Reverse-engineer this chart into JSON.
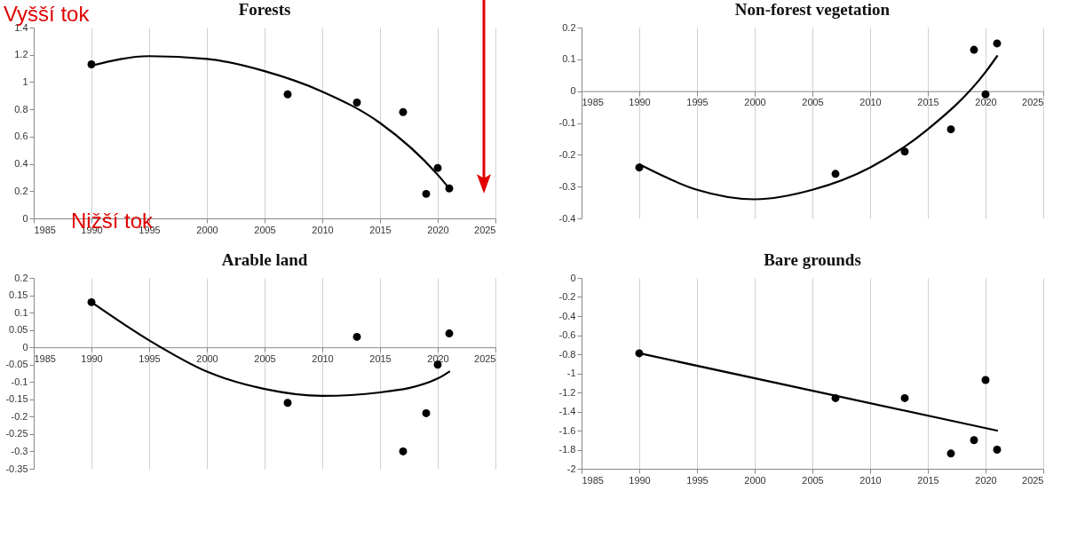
{
  "chart_data": [
    {
      "type": "scatter",
      "title": "Forests",
      "x": [
        1990,
        2007,
        2013,
        2017,
        2019,
        2020,
        2021
      ],
      "xlim": [
        1985,
        2025
      ],
      "xticks": [
        1985,
        1990,
        1995,
        2000,
        2005,
        2010,
        2015,
        2020,
        2025
      ],
      "ylim": [
        0,
        1.4
      ],
      "yticks": [
        0,
        0.2,
        0.4,
        0.6,
        0.8,
        1,
        1.2,
        1.4
      ],
      "grid": "x",
      "annotations": [
        "Vyšší tok",
        "Nižší tok"
      ],
      "series": [
        {
          "marker": "circle",
          "color": "#000000",
          "values": [
            1.13,
            0.91,
            0.85,
            0.78,
            0.18,
            0.37,
            0.22
          ]
        },
        {
          "type": "line",
          "marker": "none",
          "color": "#000000",
          "x": [
            1990,
            1995,
            2000,
            2005,
            2010,
            2015,
            2020,
            2021
          ],
          "values": [
            1.12,
            1.19,
            1.17,
            1.08,
            0.93,
            0.7,
            0.32,
            0.22
          ]
        }
      ]
    },
    {
      "type": "scatter",
      "title": "Non-forest vegetation",
      "x": [
        1990,
        2007,
        2013,
        2017,
        2019,
        2020,
        2021
      ],
      "xlim": [
        1985,
        2025
      ],
      "xticks": [
        1985,
        1990,
        1995,
        2000,
        2005,
        2010,
        2015,
        2020,
        2025
      ],
      "ylim": [
        -0.4,
        0.2
      ],
      "yticks": [
        -0.4,
        -0.3,
        -0.2,
        -0.1,
        0,
        0.1,
        0.2
      ],
      "grid": "x",
      "series": [
        {
          "marker": "circle",
          "color": "#000000",
          "values": [
            -0.24,
            -0.26,
            -0.19,
            -0.12,
            0.13,
            -0.01,
            0.15
          ]
        },
        {
          "type": "line",
          "marker": "none",
          "color": "#000000",
          "x": [
            1990,
            1995,
            2000,
            2005,
            2010,
            2015,
            2020,
            2021
          ],
          "values": [
            -0.23,
            -0.31,
            -0.34,
            -0.31,
            -0.24,
            -0.12,
            0.06,
            0.11
          ]
        }
      ]
    },
    {
      "type": "scatter",
      "title": "Arable land",
      "x": [
        1990,
        2007,
        2013,
        2017,
        2019,
        2020,
        2021
      ],
      "xlim": [
        1985,
        2025
      ],
      "xticks": [
        1985,
        1990,
        1995,
        2000,
        2005,
        2010,
        2015,
        2020,
        2025
      ],
      "ylim": [
        -0.35,
        0.2
      ],
      "yticks": [
        -0.35,
        -0.3,
        -0.25,
        -0.2,
        -0.15,
        -0.1,
        -0.05,
        0,
        0.05,
        0.1,
        0.15,
        0.2
      ],
      "grid": "x",
      "series": [
        {
          "marker": "circle",
          "color": "#000000",
          "values": [
            0.13,
            -0.16,
            0.03,
            -0.3,
            -0.19,
            -0.05,
            0.04
          ]
        },
        {
          "type": "line",
          "marker": "none",
          "color": "#000000",
          "x": [
            1990,
            1995,
            2000,
            2005,
            2010,
            2015,
            2020,
            2021
          ],
          "values": [
            0.13,
            0.02,
            -0.07,
            -0.12,
            -0.14,
            -0.13,
            -0.09,
            -0.07
          ]
        }
      ]
    },
    {
      "type": "scatter",
      "title": "Bare grounds",
      "x": [
        1990,
        2007,
        2013,
        2017,
        2019,
        2020,
        2021
      ],
      "xlim": [
        1985,
        2025
      ],
      "xticks": [
        1985,
        1990,
        1995,
        2000,
        2005,
        2010,
        2015,
        2020,
        2025
      ],
      "ylim": [
        -2,
        0
      ],
      "yticks": [
        -2,
        -1.8,
        -1.6,
        -1.4,
        -1.2,
        -1,
        -0.8,
        -0.6,
        -0.4,
        -0.2,
        0
      ],
      "grid": "x",
      "series": [
        {
          "marker": "circle",
          "color": "#000000",
          "values": [
            -0.79,
            -1.26,
            -1.26,
            -1.84,
            -1.7,
            -1.07,
            -1.8
          ]
        },
        {
          "type": "line",
          "marker": "none",
          "color": "#000000",
          "x": [
            1990,
            2021
          ],
          "values": [
            -0.79,
            -1.6
          ]
        }
      ]
    }
  ]
}
